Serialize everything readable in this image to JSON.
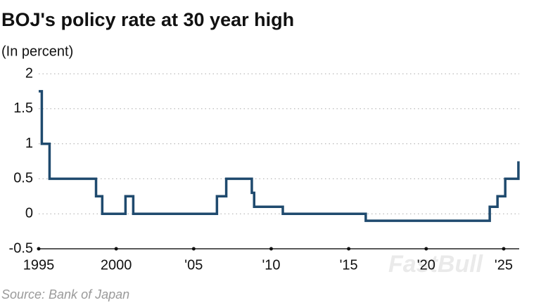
{
  "chart_data": {
    "type": "line",
    "title": "BOJ's policy rate at 30 year high",
    "subtitle": "(In percent)",
    "source": "Source: Bank of Japan",
    "watermark": "FastBull",
    "x": [
      1995.0,
      1995.2,
      1995.2,
      1995.7,
      1995.7,
      1998.7,
      1998.7,
      1999.1,
      1999.1,
      2000.6,
      2000.6,
      2001.1,
      2001.1,
      2006.5,
      2006.5,
      2007.1,
      2007.1,
      2008.75,
      2008.75,
      2008.9,
      2008.9,
      2010.75,
      2010.75,
      2016.1,
      2016.1,
      2024.1,
      2024.1,
      2024.6,
      2024.6,
      2025.1,
      2025.1,
      2025.95,
      2025.95
    ],
    "series": [
      {
        "name": "Policy rate",
        "color": "#1f4a6e",
        "values": [
          1.75,
          1.75,
          1.0,
          1.0,
          0.5,
          0.5,
          0.25,
          0.25,
          0,
          0,
          0.25,
          0.25,
          0,
          0,
          0.25,
          0.25,
          0.5,
          0.5,
          0.3,
          0.3,
          0.1,
          0.1,
          0,
          0,
          -0.1,
          -0.1,
          0.1,
          0.1,
          0.25,
          0.25,
          0.5,
          0.5,
          0.75
        ]
      }
    ],
    "xlim": [
      1995,
      2026
    ],
    "xticks": [
      1995,
      2000,
      {
        "value": 2005,
        "label": "'05"
      },
      {
        "value": 2010,
        "label": "'10"
      },
      {
        "value": 2015,
        "label": "'15"
      },
      {
        "value": 2020,
        "label": "'20"
      },
      {
        "value": 2025,
        "label": "'25"
      }
    ],
    "ylim": [
      -0.5,
      2
    ],
    "yticks": [
      -0.5,
      0,
      0.5,
      1,
      1.5,
      2
    ],
    "grid": true
  }
}
